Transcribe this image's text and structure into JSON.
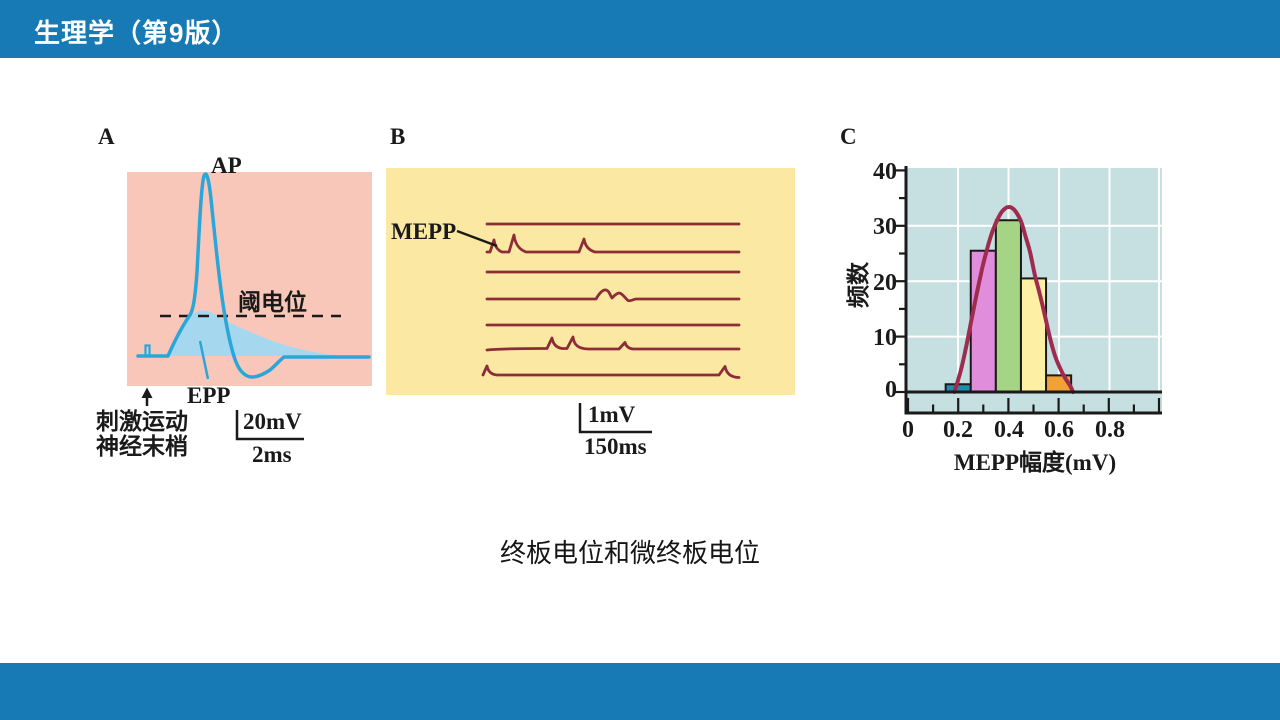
{
  "header": {
    "title": "生理学（第9版）",
    "bar_color": "#187ab5"
  },
  "caption": "终板电位和微终板电位",
  "panels": {
    "a": {
      "label": "A",
      "ap_label": "AP",
      "threshold_label": "阈电位",
      "epp_label": "EPP",
      "stimulus_label": "刺激运动\n神经末梢",
      "scale_v": "20mV",
      "scale_h": "2ms",
      "bg_color": "#f8c7ba",
      "curve_color": "#2ba6d9",
      "fill_color": "#a5d8ef"
    },
    "b": {
      "label": "B",
      "mepp_label": "MEPP",
      "scale_v": "1mV",
      "scale_h": "150ms",
      "bg_color": "#fbe8a2",
      "trace_color": "#8e2c38"
    },
    "c": {
      "label": "C",
      "ylabel": "频数",
      "xlabel": "MEPP幅度(mV)",
      "bg_color": "#c6dfe0"
    }
  },
  "chart_data": {
    "type": "bar",
    "title": "MEPP amplitude histogram with fitted curve",
    "xlabel": "MEPP幅度(mV)",
    "ylabel": "频数",
    "xlim": [
      0,
      1.0
    ],
    "ylim": [
      0,
      40
    ],
    "x_ticks": [
      0,
      0.2,
      0.4,
      0.6,
      0.8
    ],
    "x_tick_labels": [
      "0",
      "0.2",
      "0.4",
      "0.6",
      "0.8"
    ],
    "y_ticks": [
      0,
      10,
      20,
      30,
      40
    ],
    "y_tick_labels": [
      "0",
      "10",
      "20",
      "30",
      "40"
    ],
    "grid": true,
    "bins": [
      {
        "x0": 0.15,
        "x1": 0.25,
        "count": 1.4,
        "color": "#1e8eae"
      },
      {
        "x0": 0.25,
        "x1": 0.35,
        "count": 25.5,
        "color": "#e08edb"
      },
      {
        "x0": 0.35,
        "x1": 0.45,
        "count": 31,
        "color": "#a5d584"
      },
      {
        "x0": 0.45,
        "x1": 0.55,
        "count": 20.5,
        "color": "#fdf0a4"
      },
      {
        "x0": 0.55,
        "x1": 0.65,
        "count": 3,
        "color": "#f1a135"
      }
    ],
    "fit_curve": {
      "color": "#9e2c4e",
      "points": [
        [
          0.185,
          0
        ],
        [
          0.21,
          3.8
        ],
        [
          0.232,
          8.2
        ],
        [
          0.255,
          13.5
        ],
        [
          0.275,
          18
        ],
        [
          0.295,
          22.2
        ],
        [
          0.315,
          25.8
        ],
        [
          0.335,
          28.8
        ],
        [
          0.355,
          31
        ],
        [
          0.375,
          32.6
        ],
        [
          0.4,
          33.4
        ],
        [
          0.425,
          32.8
        ],
        [
          0.45,
          30.8
        ],
        [
          0.47,
          27.8
        ],
        [
          0.486,
          25.3
        ],
        [
          0.506,
          21
        ],
        [
          0.526,
          17.5
        ],
        [
          0.546,
          13.7
        ],
        [
          0.566,
          9.7
        ],
        [
          0.586,
          6.5
        ],
        [
          0.606,
          4.3
        ],
        [
          0.625,
          2.6
        ],
        [
          0.645,
          1.2
        ],
        [
          0.658,
          0
        ]
      ]
    }
  }
}
